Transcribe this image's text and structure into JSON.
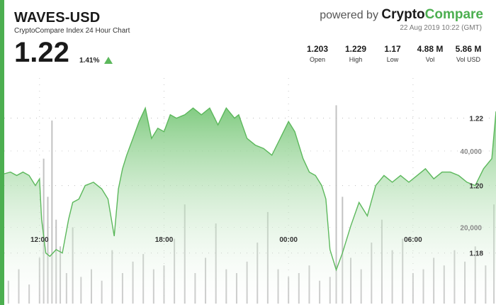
{
  "header": {
    "title": "WAVES-USD",
    "subtitle": "CryptoCompare Index 24 Hour Chart",
    "price": "1.22",
    "change": "1.41%",
    "powered_prefix": "powered by",
    "brand_part1": "Crypto",
    "brand_part2": "Compare",
    "date": "22 Aug 2019 10:22 (GMT)"
  },
  "stats": [
    {
      "value": "1.203",
      "label": "Open"
    },
    {
      "value": "1.229",
      "label": "High"
    },
    {
      "value": "1.17",
      "label": "Low"
    },
    {
      "value": "4.88 M",
      "label": "Vol"
    },
    {
      "value": "5.86 M",
      "label": "Vol USD"
    }
  ],
  "colors": {
    "accent": "#4caf50",
    "line": "#5cb85c",
    "area": "#8fd18f",
    "volume": "#b9b9b9"
  },
  "chart_data": {
    "type": "area",
    "x_tick_labels": [
      "12:00",
      "18:00",
      "00:00",
      "06:00"
    ],
    "x_tick_hours": [
      2,
      8,
      14,
      20
    ],
    "x_range_hours": [
      0.3,
      24
    ],
    "price_ticks": [
      1.18,
      1.2,
      1.22
    ],
    "price_range": [
      1.165,
      1.234
    ],
    "volume_ticks": [
      "40,000",
      "20,000"
    ],
    "volume_tick_values": [
      40000,
      20000
    ],
    "volume_range": [
      0,
      61000
    ],
    "price_series": {
      "x": [
        0.3,
        0.6,
        0.9,
        1.2,
        1.5,
        1.8,
        2.0,
        2.1,
        2.3,
        2.5,
        2.8,
        3.1,
        3.4,
        3.6,
        3.9,
        4.2,
        4.6,
        5.0,
        5.3,
        5.6,
        5.8,
        6.0,
        6.2,
        6.5,
        6.8,
        7.1,
        7.4,
        7.7,
        8.0,
        8.3,
        8.6,
        9.0,
        9.4,
        9.8,
        10.2,
        10.6,
        11.0,
        11.4,
        11.6,
        12.0,
        12.4,
        12.8,
        13.2,
        13.6,
        14.0,
        14.3,
        14.7,
        15.0,
        15.3,
        15.6,
        15.8,
        16.0,
        16.3,
        16.6,
        17.0,
        17.4,
        17.8,
        18.2,
        18.6,
        19.0,
        19.4,
        19.8,
        20.2,
        20.6,
        21.0,
        21.4,
        21.8,
        22.2,
        22.6,
        23.0,
        23.4,
        23.8,
        24.0
      ],
      "y": [
        1.2035,
        1.204,
        1.203,
        1.204,
        1.203,
        1.2,
        1.202,
        1.19,
        1.18,
        1.179,
        1.181,
        1.18,
        1.19,
        1.195,
        1.196,
        1.2,
        1.201,
        1.199,
        1.196,
        1.185,
        1.199,
        1.205,
        1.209,
        1.214,
        1.219,
        1.223,
        1.214,
        1.217,
        1.216,
        1.221,
        1.22,
        1.221,
        1.223,
        1.221,
        1.223,
        1.218,
        1.223,
        1.22,
        1.221,
        1.214,
        1.212,
        1.211,
        1.209,
        1.214,
        1.219,
        1.216,
        1.208,
        1.204,
        1.203,
        1.2,
        1.196,
        1.181,
        1.175,
        1.18,
        1.188,
        1.195,
        1.191,
        1.2,
        1.203,
        1.201,
        1.203,
        1.201,
        1.203,
        1.205,
        1.202,
        1.204,
        1.204,
        1.203,
        1.201,
        1.2,
        1.205,
        1.208,
        1.222
      ]
    },
    "volume_series": {
      "x": [
        0.5,
        1.0,
        1.5,
        2.0,
        2.2,
        2.4,
        2.6,
        2.8,
        3.0,
        3.3,
        3.6,
        4.0,
        4.5,
        5.0,
        5.5,
        6.0,
        6.5,
        7.0,
        7.5,
        8.0,
        8.5,
        9.0,
        9.5,
        10.0,
        10.5,
        11.0,
        11.5,
        12.0,
        12.5,
        13.0,
        13.5,
        14.0,
        14.5,
        15.0,
        15.5,
        16.0,
        16.3,
        16.6,
        17.0,
        17.5,
        18.0,
        18.5,
        19.0,
        19.5,
        20.0,
        20.5,
        21.0,
        21.5,
        22.0,
        22.5,
        23.0,
        23.5,
        23.9
      ],
      "y": [
        6000,
        9000,
        5000,
        12000,
        38000,
        28000,
        48000,
        22000,
        15000,
        8000,
        20000,
        7000,
        9000,
        6000,
        14000,
        8000,
        11000,
        13000,
        9000,
        10000,
        17000,
        26000,
        8000,
        12000,
        21000,
        9000,
        8000,
        11000,
        16000,
        24000,
        9000,
        7000,
        8000,
        10000,
        6000,
        7000,
        52000,
        28000,
        12000,
        9000,
        16000,
        22000,
        14000,
        17000,
        8000,
        9000,
        12000,
        10000,
        14000,
        11000,
        15000,
        10000,
        26000
      ]
    }
  }
}
